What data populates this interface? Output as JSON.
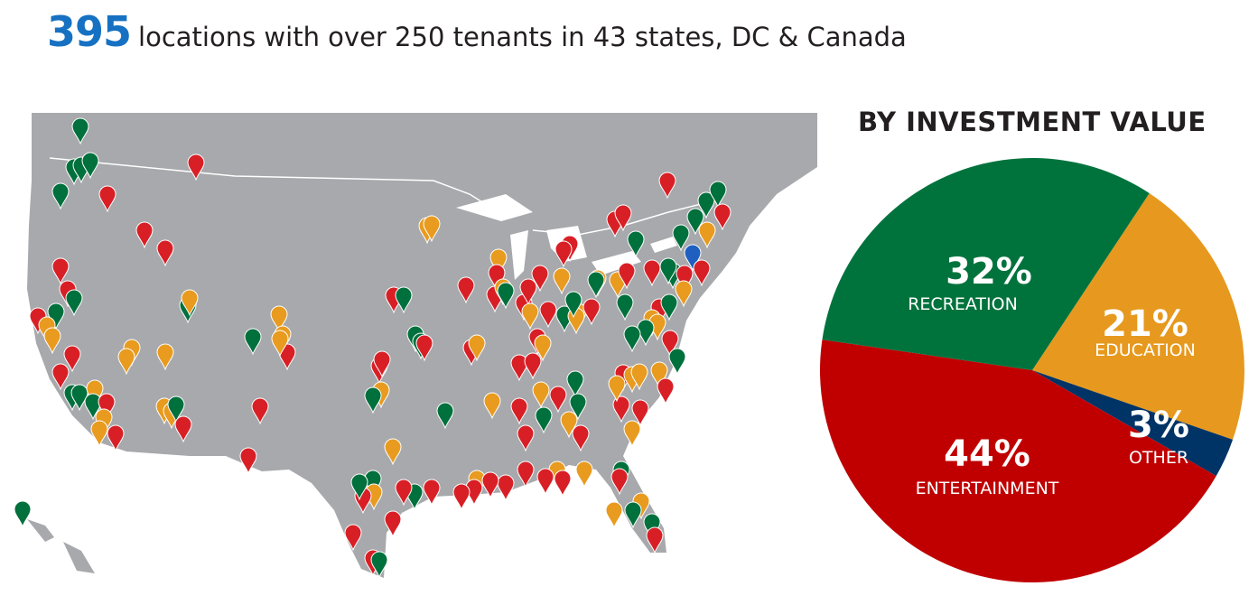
{
  "headline": {
    "count": "395",
    "text": "locations with over 250 tenants in 43 states, DC & Canada"
  },
  "map": {
    "pin_colors": {
      "entertainment": "#d91f26",
      "recreation": "#00703c",
      "education": "#e89b1f",
      "other": "#1f5fbf"
    },
    "land_color": "#a7a9ac"
  },
  "chart_data": {
    "type": "pie",
    "title": "BY INVESTMENT VALUE",
    "slices": [
      {
        "label": "EDUCATION",
        "value": 21,
        "display": "21%",
        "color": "#e6991e"
      },
      {
        "label": "OTHER",
        "value": 3,
        "display": "3%",
        "color": "#003366"
      },
      {
        "label": "ENTERTAINMENT",
        "value": 44,
        "display": "44%",
        "color": "#c00000"
      },
      {
        "label": "RECREATION",
        "value": 32,
        "display": "32%",
        "color": "#00733d"
      }
    ],
    "start_angle_deg": 33.5,
    "direction": "clockwise"
  }
}
